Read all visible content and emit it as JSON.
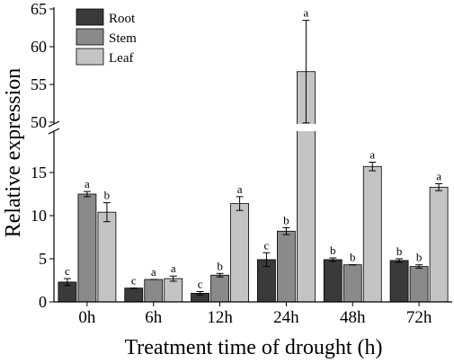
{
  "chart_data": {
    "type": "bar",
    "xlabel": "Treatment time of drought (h)",
    "ylabel": "Relative expression",
    "axis_break": {
      "lower_range": [
        0,
        20
      ],
      "upper_range": [
        50,
        65
      ]
    },
    "yticks_lower": [
      "0",
      "5",
      "10",
      "15"
    ],
    "yticks_upper": [
      "50",
      "55",
      "60",
      "65"
    ],
    "categories": [
      "0h",
      "6h",
      "12h",
      "24h",
      "48h",
      "72h"
    ],
    "legend_position": "top-left",
    "grid": false,
    "series": [
      {
        "name": "Root",
        "color": "#3a3a3a",
        "values": [
          2.3,
          1.6,
          1.0,
          4.9,
          4.9,
          4.8
        ],
        "errors": [
          0.4,
          0.0,
          0.2,
          0.8,
          0.2,
          0.2
        ],
        "labels": [
          "c",
          "c",
          "c",
          "c",
          "b",
          "b"
        ]
      },
      {
        "name": "Stem",
        "color": "#8a8a8a",
        "values": [
          12.5,
          2.6,
          3.1,
          8.2,
          4.3,
          4.1
        ],
        "errors": [
          0.3,
          0.0,
          0.2,
          0.4,
          0.0,
          0.2
        ],
        "labels": [
          "a",
          "a",
          "b",
          "b",
          "b",
          "b"
        ]
      },
      {
        "name": "Leaf",
        "color": "#c4c4c4",
        "values": [
          10.4,
          2.7,
          11.4,
          56.7,
          15.7,
          13.3
        ],
        "errors": [
          1.1,
          0.3,
          0.8,
          6.8,
          0.5,
          0.4
        ],
        "labels": [
          "b",
          "a",
          "a",
          "a",
          "a",
          "a"
        ]
      }
    ]
  }
}
